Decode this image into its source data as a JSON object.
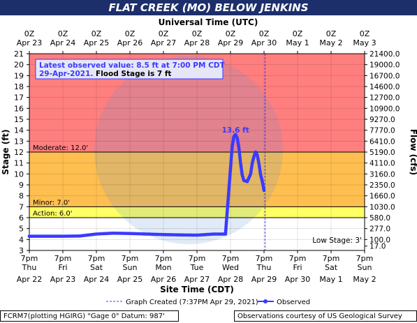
{
  "title": "FLAT CREEK (MO) BELOW JENKINS",
  "chart_data": {
    "type": "line",
    "top_axis_title": "Universal Time (UTC)",
    "xlabel": "Site Time (CDT)",
    "ylabel_left": "Stage (ft)",
    "ylabel_right": "Flow (cfs)",
    "ylim": [
      3,
      21
    ],
    "left_ticks": [
      "3",
      "4",
      "5",
      "6",
      "7",
      "8",
      "9",
      "10",
      "11",
      "12",
      "13",
      "14",
      "15",
      "16",
      "17",
      "18",
      "19",
      "20",
      "21"
    ],
    "right_ticks": [
      {
        "stage": 3.4,
        "label": "17.0"
      },
      {
        "stage": 4,
        "label": "100.0"
      },
      {
        "stage": 5,
        "label": "277.0"
      },
      {
        "stage": 6,
        "label": "580.0"
      },
      {
        "stage": 7,
        "label": "1030.0"
      },
      {
        "stage": 8,
        "label": "1660.0"
      },
      {
        "stage": 9,
        "label": "2350.0"
      },
      {
        "stage": 10,
        "label": "3160.0"
      },
      {
        "stage": 11,
        "label": "4110.0"
      },
      {
        "stage": 12,
        "label": "5190.0"
      },
      {
        "stage": 13,
        "label": "6410.0"
      },
      {
        "stage": 14,
        "label": "7770.0"
      },
      {
        "stage": 15,
        "label": "9270.0"
      },
      {
        "stage": 16,
        "label": "10900.0"
      },
      {
        "stage": 17,
        "label": "12700.0"
      },
      {
        "stage": 18,
        "label": "14600.0"
      },
      {
        "stage": 19,
        "label": "16700.0"
      },
      {
        "stage": 20,
        "label": "19000.0"
      },
      {
        "stage": 21,
        "label": "21400.0"
      }
    ],
    "bottom_ticks": [
      {
        "l1": "7pm",
        "l2": "Thu",
        "l3": "Apr 22"
      },
      {
        "l1": "7pm",
        "l2": "Fri",
        "l3": "Apr 23"
      },
      {
        "l1": "7pm",
        "l2": "Sat",
        "l3": "Apr 24"
      },
      {
        "l1": "7pm",
        "l2": "Sun",
        "l3": "Apr 25"
      },
      {
        "l1": "7pm",
        "l2": "Mon",
        "l3": "Apr 26"
      },
      {
        "l1": "7pm",
        "l2": "Tue",
        "l3": "Apr 27"
      },
      {
        "l1": "7pm",
        "l2": "Wed",
        "l3": "Apr 28"
      },
      {
        "l1": "7pm",
        "l2": "Thu",
        "l3": "Apr 29"
      },
      {
        "l1": "7pm",
        "l2": "Fri",
        "l3": "Apr 30"
      },
      {
        "l1": "7pm",
        "l2": "Sat",
        "l3": "May 1"
      },
      {
        "l1": "7pm",
        "l2": "Sun",
        "l3": "May 2"
      }
    ],
    "top_ticks": [
      {
        "l1": "0Z",
        "l2": "Apr 23"
      },
      {
        "l1": "0Z",
        "l2": "Apr 24"
      },
      {
        "l1": "0Z",
        "l2": "Apr 25"
      },
      {
        "l1": "0Z",
        "l2": "Apr 26"
      },
      {
        "l1": "0Z",
        "l2": "Apr 27"
      },
      {
        "l1": "0Z",
        "l2": "Apr 28"
      },
      {
        "l1": "0Z",
        "l2": "Apr 29"
      },
      {
        "l1": "0Z",
        "l2": "Apr 30"
      },
      {
        "l1": "0Z",
        "l2": "May 1"
      },
      {
        "l1": "0Z",
        "l2": "May 2"
      },
      {
        "l1": "0Z",
        "l2": "May 3"
      }
    ],
    "bands": [
      {
        "from": 12,
        "to": 21,
        "color": "#ff7f7f"
      },
      {
        "from": 7,
        "to": 12,
        "color": "#ffbf50"
      },
      {
        "from": 6,
        "to": 7,
        "color": "#ffff66"
      },
      {
        "from": 3,
        "to": 6,
        "color": "#ffffff"
      }
    ],
    "thresholds": [
      {
        "stage": 12,
        "label": "Moderate: 12.0'"
      },
      {
        "stage": 7,
        "label": "Minor: 7.0'"
      },
      {
        "stage": 6,
        "label": "Action: 6.0'"
      }
    ],
    "low_stage_label": "Low Stage: 3'",
    "graph_created_day": 7.03,
    "peak_label": "13.6 ft",
    "peak": {
      "day": 6.15,
      "stage": 13.6
    },
    "series": [
      {
        "name": "Observed",
        "color": "#3a3aff",
        "x_unit": "days since Apr 22 7pm CDT",
        "points": [
          [
            0,
            4.3
          ],
          [
            0.5,
            4.3
          ],
          [
            1,
            4.3
          ],
          [
            1.5,
            4.32
          ],
          [
            2,
            4.5
          ],
          [
            2.5,
            4.58
          ],
          [
            3,
            4.55
          ],
          [
            3.5,
            4.5
          ],
          [
            4,
            4.45
          ],
          [
            4.5,
            4.42
          ],
          [
            5,
            4.4
          ],
          [
            5.5,
            4.5
          ],
          [
            5.85,
            4.5
          ],
          [
            5.9,
            6.5
          ],
          [
            5.95,
            8.5
          ],
          [
            6.0,
            10.5
          ],
          [
            6.05,
            12.5
          ],
          [
            6.1,
            13.4
          ],
          [
            6.15,
            13.6
          ],
          [
            6.2,
            13.3
          ],
          [
            6.25,
            12.4
          ],
          [
            6.3,
            11.0
          ],
          [
            6.35,
            9.9
          ],
          [
            6.4,
            9.4
          ],
          [
            6.5,
            9.3
          ],
          [
            6.6,
            10.0
          ],
          [
            6.65,
            11.0
          ],
          [
            6.7,
            11.6
          ],
          [
            6.75,
            12.0
          ],
          [
            6.8,
            11.7
          ],
          [
            6.85,
            10.9
          ],
          [
            6.9,
            9.9
          ],
          [
            6.95,
            9.3
          ],
          [
            7.0,
            8.5
          ]
        ]
      }
    ]
  },
  "legend": {
    "created": "Graph Created (7:37PM Apr 29, 2021)",
    "observed": "Observed"
  },
  "info_box": {
    "line1": "Latest observed value: 8.5 ft at 7:00 PM CDT",
    "line2a": "29-Apr-2021.",
    "line2b": "Flood Stage is 7 ft"
  },
  "footer": {
    "left": "FCRM7(plotting HGIRG) \"Gage 0\" Datum: 987'",
    "right": "Observations courtesy of US Geological Survey"
  },
  "colors": {
    "title_bg": "#1c2f6b",
    "series": "#3a3aff",
    "moderate": "#ff7f7f",
    "minor": "#ffbf50",
    "action": "#ffff66"
  }
}
